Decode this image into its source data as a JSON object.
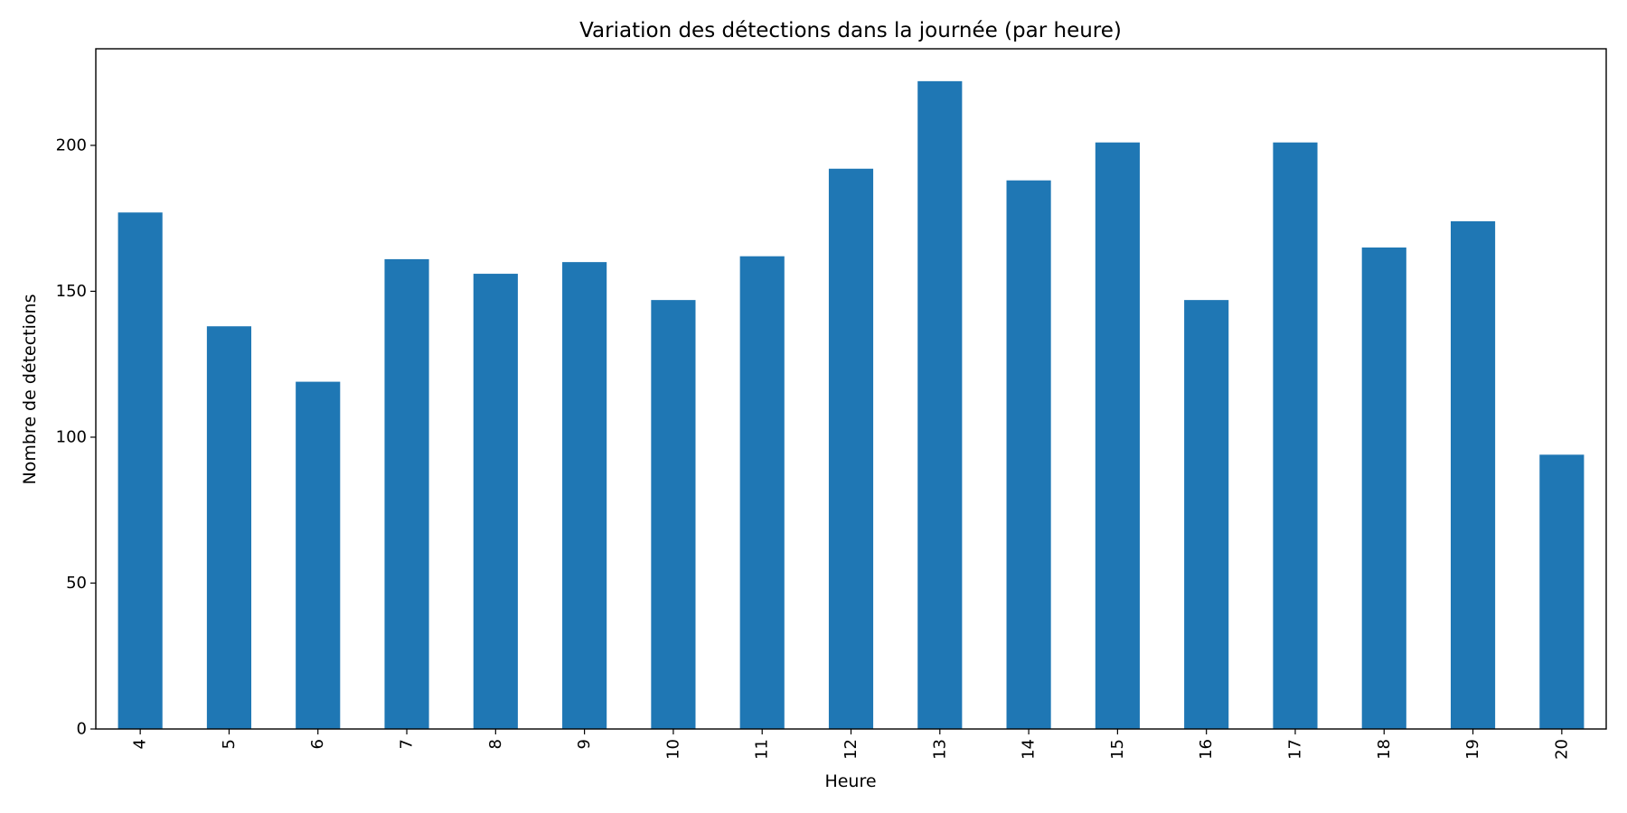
{
  "chart_data": {
    "type": "bar",
    "title": "Variation des détections dans la journée (par heure)",
    "xlabel": "Heure",
    "ylabel": "Nombre de détections",
    "categories": [
      "4",
      "5",
      "6",
      "7",
      "8",
      "9",
      "10",
      "11",
      "12",
      "13",
      "14",
      "15",
      "16",
      "17",
      "18",
      "19",
      "20"
    ],
    "values": [
      177,
      138,
      119,
      161,
      156,
      160,
      147,
      162,
      192,
      222,
      188,
      201,
      147,
      201,
      165,
      174,
      94
    ],
    "yticks": [
      0,
      50,
      100,
      150,
      200
    ],
    "ylim": [
      0,
      233.1
    ],
    "grid": false,
    "legend": "none",
    "x_tick_rotation": "vertical",
    "bar_color": "#1f77b4",
    "axis_color": "#000000"
  }
}
